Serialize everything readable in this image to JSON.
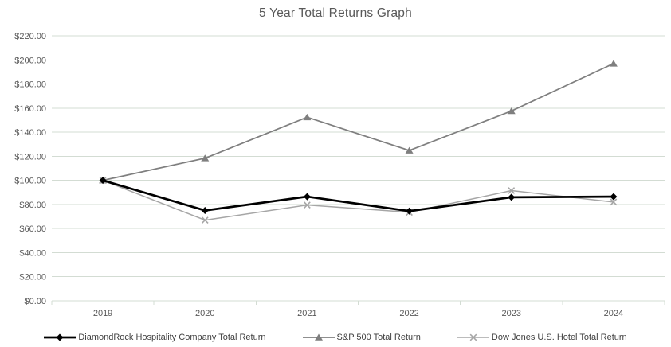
{
  "chart_data": {
    "type": "line",
    "title": "5 Year Total Returns Graph",
    "x": [
      "2019",
      "2020",
      "2021",
      "2022",
      "2023",
      "2024"
    ],
    "xlabel": "",
    "ylabel": "",
    "ylim": [
      0,
      220
    ],
    "ytick_step": 20,
    "ytick_format": "$#,##0.00",
    "grid": "horizontal",
    "legend_position": "bottom",
    "series": [
      {
        "name": "DiamondRock Hospitality Company Total Return",
        "marker": "diamond",
        "color": "#000000",
        "line_width": 2.75,
        "values": [
          100.0,
          75.0,
          86.5,
          74.5,
          86.0,
          86.5
        ]
      },
      {
        "name": "S&P 500 Total Return",
        "marker": "triangle",
        "color": "#7f7f7f",
        "line_width": 1.75,
        "values": [
          100.0,
          118.4,
          152.4,
          124.8,
          157.6,
          197.0
        ]
      },
      {
        "name": "Dow Jones U.S. Hotel Total Return",
        "marker": "x",
        "color": "#a6a6a6",
        "line_width": 1.5,
        "values": [
          100.0,
          67.0,
          79.5,
          73.5,
          91.5,
          82.0
        ]
      }
    ],
    "colors": {
      "grid": "#d3dcd3",
      "axis": "#d3dcd3",
      "tick_label": "#595959",
      "title": "#595959",
      "legend_text": "#404040"
    }
  }
}
